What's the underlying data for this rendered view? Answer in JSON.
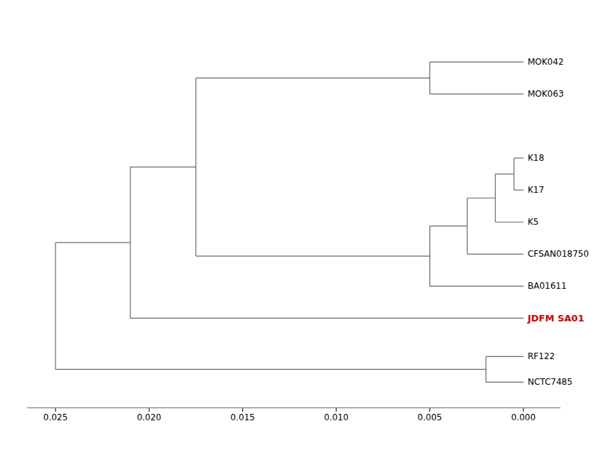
{
  "chart_data": {
    "type": "tree",
    "color": "#696969",
    "grid": false,
    "tick_labels": "x",
    "xlim": [
      0.0265,
      -0.002
    ],
    "xticks": [
      0.025,
      {
        "value": 0.02,
        "label": "0.020"
      },
      0.015,
      {
        "value": 0.01,
        "label": "0.010"
      },
      0.005,
      {
        "value": 0,
        "label": "0.000"
      }
    ],
    "ylim": [
      -0.8,
      11.3
    ],
    "tree": {
      "x": 0.025,
      "children": [
        {
          "x": 0.021,
          "children": [
            {
              "x": 0.0175,
              "children": [
                {
                  "x": 0.005,
                  "children": [
                    {
                      "name": "MOK042",
                      "x": 0,
                      "y": 10
                    },
                    {
                      "name": "MOK063",
                      "x": 0,
                      "y": 9
                    }
                  ]
                },
                {
                  "x": 0.005,
                  "children": [
                    {
                      "x": 0.003,
                      "children": [
                        {
                          "x": 0.0015,
                          "children": [
                            {
                              "x": 0.0005,
                              "children": [
                                {
                                  "name": "K18",
                                  "x": 0,
                                  "y": 7
                                },
                                {
                                  "name": "K17",
                                  "x": 0,
                                  "y": 6
                                }
                              ]
                            },
                            {
                              "name": "K5",
                              "x": 0,
                              "y": 5
                            }
                          ]
                        },
                        {
                          "name": "CFSAN018750",
                          "x": 0,
                          "y": 4
                        }
                      ]
                    },
                    {
                      "name": "BA01611",
                      "x": 0,
                      "y": 3
                    }
                  ]
                }
              ]
            },
            {
              "name": "JDFM SA01",
              "x": 0,
              "y": 2,
              "color": "#cc0000"
            }
          ]
        },
        {
          "x": 0.002,
          "children": [
            {
              "name": "RF122",
              "x": 0,
              "y": 0.8
            },
            {
              "name": "NCTC7485",
              "x": 0,
              "y": 0
            }
          ]
        }
      ]
    }
  }
}
